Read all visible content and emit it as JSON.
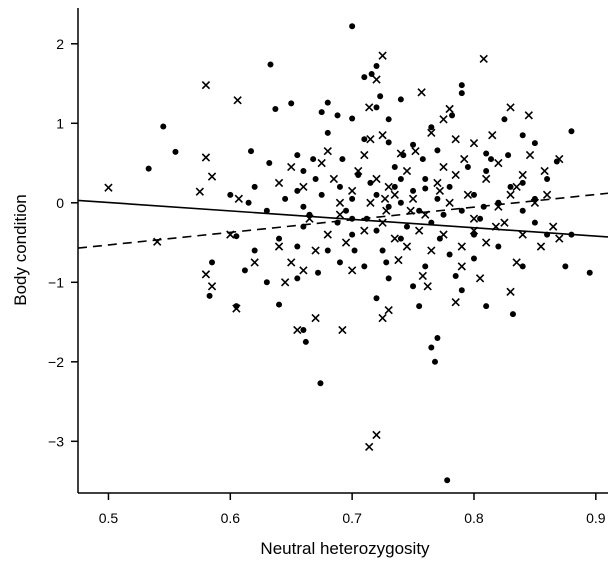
{
  "chart_data": {
    "type": "scatter",
    "title": "",
    "xlabel": "Neutral heterozygosity",
    "ylabel": "Body condition",
    "xlim": [
      0.475,
      0.91
    ],
    "ylim": [
      -3.65,
      2.45
    ],
    "xticks": [
      0.5,
      0.6,
      0.7,
      0.8,
      0.9
    ],
    "xtick_labels": [
      "0.5",
      "0.6",
      "0.7",
      "0.8",
      "0.9"
    ],
    "yticks": [
      -3,
      -2,
      -1,
      0,
      1,
      2
    ],
    "ytick_labels": [
      "−3",
      "−2",
      "−1",
      "0",
      "1",
      "2"
    ],
    "grid": false,
    "legend": "none",
    "colors": {
      "points": "#000000",
      "lines": "#000000",
      "axes": "#000000"
    },
    "series": [
      {
        "marker": "dot",
        "points": [
          [
            0.7,
            2.22
          ],
          [
            0.633,
            1.74
          ],
          [
            0.72,
            1.72
          ],
          [
            0.716,
            1.62
          ],
          [
            0.71,
            1.58
          ],
          [
            0.79,
            1.48
          ],
          [
            0.723,
            1.34
          ],
          [
            0.65,
            1.25
          ],
          [
            0.637,
            1.18
          ],
          [
            0.68,
            1.26
          ],
          [
            0.74,
            1.3
          ],
          [
            0.675,
            1.14
          ],
          [
            0.72,
            1.2
          ],
          [
            0.688,
            1.1
          ],
          [
            0.7,
            1.06
          ],
          [
            0.545,
            0.96
          ],
          [
            0.555,
            0.64
          ],
          [
            0.533,
            0.43
          ],
          [
            0.617,
            0.65
          ],
          [
            0.655,
            0.6
          ],
          [
            0.668,
            0.55
          ],
          [
            0.71,
            0.8
          ],
          [
            0.73,
            0.76
          ],
          [
            0.75,
            0.73
          ],
          [
            0.77,
            0.66
          ],
          [
            0.81,
            0.62
          ],
          [
            0.85,
            0.75
          ],
          [
            0.88,
            0.9
          ],
          [
            0.868,
            0.52
          ],
          [
            0.76,
            0.18
          ],
          [
            0.62,
            0.2
          ],
          [
            0.632,
            0.5
          ],
          [
            0.6,
            0.1
          ],
          [
            0.615,
            0.0
          ],
          [
            0.63,
            -0.1
          ],
          [
            0.645,
            0.05
          ],
          [
            0.655,
            0.15
          ],
          [
            0.66,
            -0.05
          ],
          [
            0.67,
            0.3
          ],
          [
            0.675,
            0.1
          ],
          [
            0.69,
            0.2
          ],
          [
            0.695,
            -0.1
          ],
          [
            0.7,
            0.05
          ],
          [
            0.705,
            0.35
          ],
          [
            0.712,
            -0.2
          ],
          [
            0.72,
            0.1
          ],
          [
            0.73,
            -0.05
          ],
          [
            0.735,
            0.2
          ],
          [
            0.74,
            0.0
          ],
          [
            0.745,
            -0.3
          ],
          [
            0.75,
            0.15
          ],
          [
            0.755,
            -0.1
          ],
          [
            0.76,
            0.3
          ],
          [
            0.765,
            -0.25
          ],
          [
            0.77,
            0.05
          ],
          [
            0.78,
            0.2
          ],
          [
            0.79,
            -0.1
          ],
          [
            0.8,
            0.1
          ],
          [
            0.805,
            -0.2
          ],
          [
            0.81,
            0.4
          ],
          [
            0.82,
            0.0
          ],
          [
            0.83,
            0.2
          ],
          [
            0.84,
            -0.1
          ],
          [
            0.85,
            0.05
          ],
          [
            0.86,
            0.3
          ],
          [
            0.74,
            -0.45
          ],
          [
            0.7,
            -0.4
          ],
          [
            0.68,
            -0.6
          ],
          [
            0.66,
            -0.3
          ],
          [
            0.64,
            -0.45
          ],
          [
            0.62,
            -0.6
          ],
          [
            0.605,
            -0.42
          ],
          [
            0.585,
            -0.75
          ],
          [
            0.612,
            -0.85
          ],
          [
            0.63,
            -1.0
          ],
          [
            0.655,
            -0.95
          ],
          [
            0.672,
            -0.88
          ],
          [
            0.69,
            -0.75
          ],
          [
            0.71,
            -0.8
          ],
          [
            0.725,
            -0.6
          ],
          [
            0.76,
            -0.8
          ],
          [
            0.78,
            -0.65
          ],
          [
            0.8,
            -0.7
          ],
          [
            0.82,
            -0.55
          ],
          [
            0.84,
            -0.8
          ],
          [
            0.86,
            -0.4
          ],
          [
            0.875,
            -0.8
          ],
          [
            0.895,
            -0.88
          ],
          [
            0.88,
            -0.4
          ],
          [
            0.583,
            -1.17
          ],
          [
            0.605,
            -1.3
          ],
          [
            0.64,
            -1.28
          ],
          [
            0.66,
            -1.6
          ],
          [
            0.662,
            -1.75
          ],
          [
            0.72,
            -1.2
          ],
          [
            0.755,
            -1.3
          ],
          [
            0.765,
            -1.82
          ],
          [
            0.768,
            -2.0
          ],
          [
            0.77,
            -1.7
          ],
          [
            0.79,
            -1.1
          ],
          [
            0.81,
            -1.3
          ],
          [
            0.832,
            -1.4
          ],
          [
            0.674,
            -2.27
          ],
          [
            0.778,
            -3.49
          ],
          [
            0.73,
            -0.95
          ],
          [
            0.75,
            -1.05
          ],
          [
            0.785,
            -0.92
          ],
          [
            0.72,
            -0.35
          ],
          [
            0.7,
            -0.2
          ],
          [
            0.8,
            -0.4
          ],
          [
            0.692,
            0.55
          ],
          [
            0.735,
            0.45
          ],
          [
            0.758,
            0.55
          ],
          [
            0.795,
            0.45
          ],
          [
            0.828,
            0.6
          ],
          [
            0.84,
            0.25
          ],
          [
            0.772,
            -0.45
          ],
          [
            0.688,
            -0.25
          ],
          [
            0.742,
            0.6
          ],
          [
            0.665,
            -0.15
          ],
          [
            0.73,
            1.05
          ],
          [
            0.765,
            0.95
          ],
          [
            0.782,
            1.1
          ],
          [
            0.79,
            1.38
          ],
          [
            0.825,
            1.05
          ],
          [
            0.84,
            0.85
          ],
          [
            0.814,
            0.55
          ],
          [
            0.68,
            0.88
          ],
          [
            0.66,
            0.4
          ],
          [
            0.702,
            -0.6
          ],
          [
            0.85,
            -0.25
          ],
          [
            0.655,
            -0.55
          ],
          [
            0.74,
            0.3
          ],
          [
            0.775,
            -0.15
          ],
          [
            0.808,
            -0.05
          ],
          [
            0.728,
            -0.75
          ],
          [
            0.715,
            0.25
          ]
        ]
      },
      {
        "marker": "cross",
        "points": [
          [
            0.725,
            1.85
          ],
          [
            0.808,
            1.81
          ],
          [
            0.58,
            1.48
          ],
          [
            0.606,
            1.29
          ],
          [
            0.757,
            1.39
          ],
          [
            0.72,
            1.55
          ],
          [
            0.714,
            1.2
          ],
          [
            0.78,
            1.18
          ],
          [
            0.775,
            1.05
          ],
          [
            0.845,
            1.1
          ],
          [
            0.83,
            1.2
          ],
          [
            0.715,
            0.8
          ],
          [
            0.725,
            0.85
          ],
          [
            0.74,
            0.62
          ],
          [
            0.765,
            0.88
          ],
          [
            0.785,
            0.8
          ],
          [
            0.8,
            0.75
          ],
          [
            0.82,
            0.5
          ],
          [
            0.858,
            0.4
          ],
          [
            0.87,
            0.55
          ],
          [
            0.5,
            0.19
          ],
          [
            0.58,
            0.57
          ],
          [
            0.585,
            0.33
          ],
          [
            0.575,
            0.14
          ],
          [
            0.607,
            0.05
          ],
          [
            0.64,
            0.25
          ],
          [
            0.65,
            0.45
          ],
          [
            0.66,
            0.2
          ],
          [
            0.675,
            0.5
          ],
          [
            0.685,
            0.3
          ],
          [
            0.69,
            0.0
          ],
          [
            0.7,
            0.15
          ],
          [
            0.705,
            0.4
          ],
          [
            0.715,
            0.0
          ],
          [
            0.72,
            0.3
          ],
          [
            0.728,
            -0.1
          ],
          [
            0.735,
            0.1
          ],
          [
            0.745,
            0.4
          ],
          [
            0.75,
            0.05
          ],
          [
            0.76,
            -0.15
          ],
          [
            0.77,
            0.25
          ],
          [
            0.78,
            0.0
          ],
          [
            0.785,
            0.35
          ],
          [
            0.795,
            0.1
          ],
          [
            0.8,
            -0.2
          ],
          [
            0.81,
            0.3
          ],
          [
            0.82,
            -0.05
          ],
          [
            0.83,
            0.1
          ],
          [
            0.84,
            0.35
          ],
          [
            0.85,
            0.0
          ],
          [
            0.86,
            0.1
          ],
          [
            0.865,
            -0.3
          ],
          [
            0.87,
            -0.45
          ],
          [
            0.54,
            -0.49
          ],
          [
            0.6,
            -0.4
          ],
          [
            0.58,
            -0.9
          ],
          [
            0.585,
            -1.05
          ],
          [
            0.605,
            -1.33
          ],
          [
            0.62,
            -0.75
          ],
          [
            0.64,
            -0.55
          ],
          [
            0.65,
            -0.75
          ],
          [
            0.66,
            -0.85
          ],
          [
            0.67,
            -0.6
          ],
          [
            0.68,
            -0.4
          ],
          [
            0.695,
            -0.5
          ],
          [
            0.71,
            -0.35
          ],
          [
            0.725,
            -0.25
          ],
          [
            0.735,
            -0.45
          ],
          [
            0.745,
            -0.55
          ],
          [
            0.755,
            -0.35
          ],
          [
            0.765,
            -0.6
          ],
          [
            0.775,
            -0.4
          ],
          [
            0.79,
            -0.55
          ],
          [
            0.8,
            -0.35
          ],
          [
            0.81,
            -0.5
          ],
          [
            0.825,
            -0.25
          ],
          [
            0.84,
            -0.4
          ],
          [
            0.855,
            -0.55
          ],
          [
            0.655,
            -1.6
          ],
          [
            0.67,
            -1.45
          ],
          [
            0.692,
            -1.6
          ],
          [
            0.725,
            -1.45
          ],
          [
            0.73,
            -1.35
          ],
          [
            0.762,
            -1.05
          ],
          [
            0.785,
            -1.25
          ],
          [
            0.83,
            -1.12
          ],
          [
            0.835,
            -0.75
          ],
          [
            0.645,
            -1.0
          ],
          [
            0.714,
            -3.07
          ],
          [
            0.72,
            -2.92
          ],
          [
            0.7,
            -0.85
          ],
          [
            0.738,
            -0.72
          ],
          [
            0.758,
            -0.92
          ],
          [
            0.79,
            -0.8
          ],
          [
            0.805,
            -0.95
          ],
          [
            0.71,
            0.6
          ],
          [
            0.752,
            0.65
          ],
          [
            0.775,
            0.45
          ],
          [
            0.792,
            0.55
          ],
          [
            0.815,
            0.85
          ],
          [
            0.835,
            0.2
          ],
          [
            0.846,
            0.6
          ],
          [
            0.68,
            0.65
          ],
          [
            0.665,
            -0.2
          ],
          [
            0.69,
            -0.15
          ],
          [
            0.73,
            0.2
          ],
          [
            0.748,
            -0.1
          ],
          [
            0.772,
            0.15
          ],
          [
            0.818,
            -0.3
          ],
          [
            0.727,
            0.05
          ]
        ]
      }
    ],
    "lines": [
      {
        "style": "solid",
        "x": [
          0.475,
          0.91
        ],
        "y": [
          0.03,
          -0.43
        ]
      },
      {
        "style": "dashed",
        "x": [
          0.475,
          0.91
        ],
        "y": [
          -0.57,
          0.12
        ]
      }
    ]
  }
}
